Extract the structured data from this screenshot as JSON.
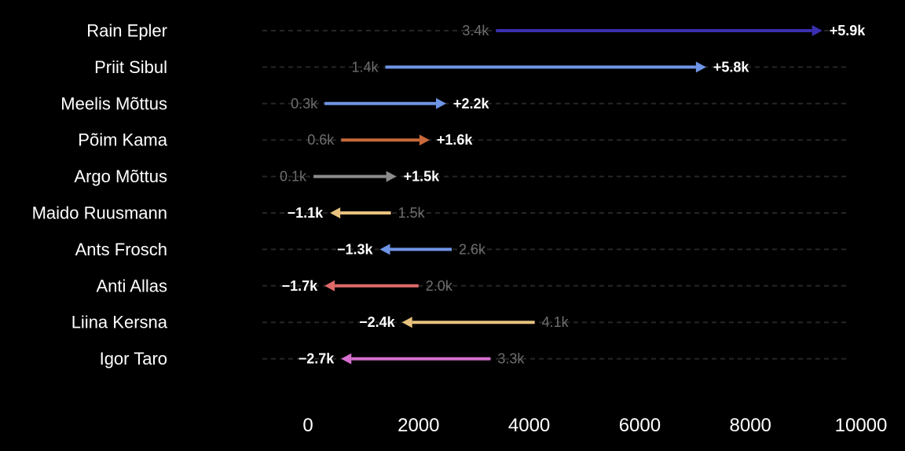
{
  "chart_data": {
    "type": "arrow",
    "title": "",
    "xlabel": "",
    "ylabel": "",
    "xlim": [
      0,
      10000
    ],
    "xticks": [
      0,
      2000,
      4000,
      6000,
      8000,
      10000
    ],
    "xtick_labels": [
      "0",
      "2000",
      "4000",
      "6000",
      "8000",
      "10000"
    ],
    "grid": "horizontal dashed row guides",
    "rows": [
      {
        "name": "Rain Epler",
        "start": 3400,
        "end": 9300,
        "start_label": "3.4k",
        "delta_label": "+5.9k",
        "color": "#3a2fb0"
      },
      {
        "name": "Priit Sibul",
        "start": 1400,
        "end": 7200,
        "start_label": "1.4k",
        "delta_label": "+5.8k",
        "color": "#6f95e6"
      },
      {
        "name": "Meelis Mõttus",
        "start": 300,
        "end": 2500,
        "start_label": "0.3k",
        "delta_label": "+2.2k",
        "color": "#6f95e6"
      },
      {
        "name": "Põim Kama",
        "start": 600,
        "end": 2200,
        "start_label": "0.6k",
        "delta_label": "+1.6k",
        "color": "#c8693a"
      },
      {
        "name": "Argo Mõttus",
        "start": 100,
        "end": 1600,
        "start_label": "0.1k",
        "delta_label": "+1.5k",
        "color": "#8c8c8c"
      },
      {
        "name": "Maido Ruusmann",
        "start": 1500,
        "end": 400,
        "start_label": "1.5k",
        "delta_label": "−1.1k",
        "color": "#e8c27e"
      },
      {
        "name": "Ants Frosch",
        "start": 2600,
        "end": 1300,
        "start_label": "2.6k",
        "delta_label": "−1.3k",
        "color": "#6f95e6"
      },
      {
        "name": "Anti Allas",
        "start": 2000,
        "end": 300,
        "start_label": "2.0k",
        "delta_label": "−1.7k",
        "color": "#e06a6a"
      },
      {
        "name": "Liina Kersna",
        "start": 4100,
        "end": 1700,
        "start_label": "4.1k",
        "delta_label": "−2.4k",
        "color": "#e8c27e"
      },
      {
        "name": "Igor Taro",
        "start": 3300,
        "end": 600,
        "start_label": "3.3k",
        "delta_label": "−2.7k",
        "color": "#d86fd0"
      }
    ]
  }
}
